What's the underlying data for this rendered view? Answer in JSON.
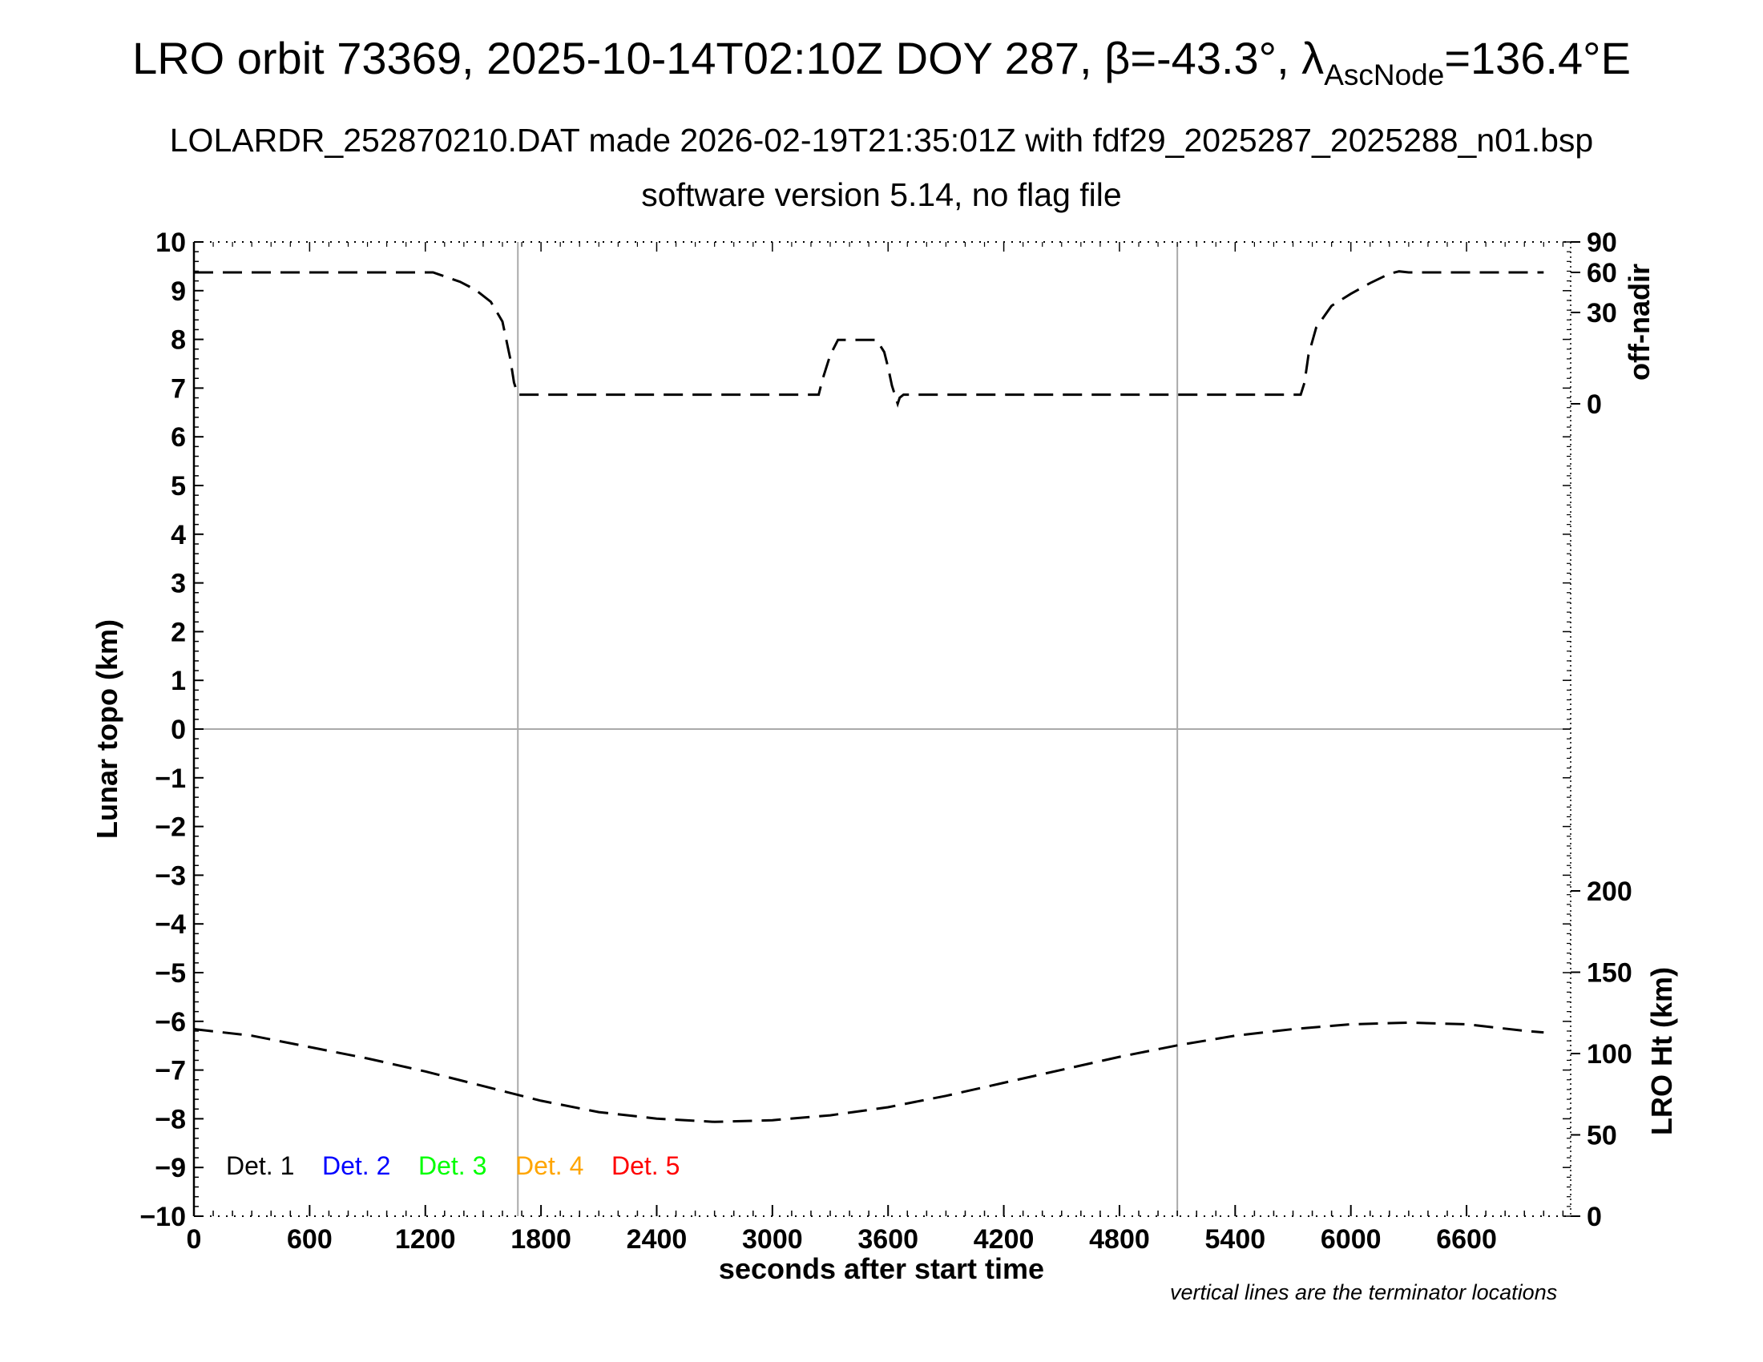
{
  "header": {
    "title_main": "LRO orbit 73369, 2025-10-14T02:10Z DOY 287, β=-43.3°, λ",
    "title_sub": "AscNode",
    "title_tail": "=136.4°E",
    "subtitle": "LOLARDR_252870210.DAT made 2026-02-19T21:35:01Z with fdf29_2025287_2025288_n01.bsp",
    "version": "software version 5.14, no flag file"
  },
  "footnote": "vertical lines are the terminator locations",
  "colors": {
    "axis": "#000000",
    "terminator": "#aaaaaa",
    "det1": "#000000",
    "det2": "#0000ff",
    "det3": "#00ff00",
    "det4": "#ffa500",
    "det5": "#ff0000"
  },
  "chart_data": {
    "type": "line",
    "xlabel": "seconds after start time",
    "ylabel": "Lunar topo (km)",
    "xlim": [
      0,
      7140
    ],
    "ylim": [
      -10,
      10
    ],
    "x_ticks": [
      0,
      600,
      1200,
      1800,
      2400,
      3000,
      3600,
      4200,
      4800,
      5400,
      6000,
      6600
    ],
    "x_tick_labels": [
      "0",
      "600",
      "1200",
      "1800",
      "2400",
      "3000",
      "3600",
      "4200",
      "4800",
      "5400",
      "6000",
      "6600"
    ],
    "y_ticks": [
      -10,
      -9,
      -8,
      -7,
      -6,
      -5,
      -4,
      -3,
      -2,
      -1,
      0,
      1,
      2,
      3,
      4,
      5,
      6,
      7,
      8,
      9,
      10
    ],
    "y_tick_labels": [
      "−10",
      "−9",
      "−8",
      "−7",
      "−6",
      "−5",
      "−4",
      "−3",
      "−2",
      "−1",
      "0",
      "1",
      "2",
      "3",
      "4",
      "5",
      "6",
      "7",
      "8",
      "9",
      "10"
    ],
    "zero_line": true,
    "terminators": [
      1680,
      5100
    ],
    "offnadir_axis": {
      "label": "off-nadir",
      "ticks": [
        0,
        30,
        60,
        90
      ],
      "tick_labels": [
        "0",
        "30",
        "60",
        "90"
      ],
      "series": {
        "name": "off-nadir",
        "x": [
          0,
          1200,
          1240,
          1300,
          1380,
          1460,
          1540,
          1600,
          1640,
          1660,
          1680,
          1700,
          2000,
          3000,
          3240,
          3260,
          3300,
          3340,
          3380,
          3420,
          3460,
          3540,
          3580,
          3600,
          3620,
          3640,
          3650,
          3660,
          3680,
          4000,
          5000,
          5700,
          5740,
          5760,
          5780,
          5820,
          5900,
          6000,
          6100,
          6200,
          6250,
          6300,
          7000
        ],
        "y": [
          60,
          60,
          60,
          57,
          53,
          47,
          38,
          27,
          15,
          7,
          3,
          3,
          3,
          3,
          3,
          8,
          16,
          21,
          21,
          21,
          21,
          21,
          17,
          12,
          6,
          2,
          0,
          2,
          3,
          3,
          3,
          3,
          3,
          7,
          16,
          25,
          35,
          44,
          52,
          59,
          61,
          60,
          60
        ]
      }
    },
    "height_axis": {
      "label": "LRO Ht (km)",
      "ticks": [
        0,
        50,
        100,
        150,
        200
      ],
      "tick_labels": [
        "0",
        "50",
        "100",
        "150",
        "200"
      ],
      "series": {
        "name": "LRO Ht",
        "x": [
          0,
          300,
          600,
          900,
          1200,
          1500,
          1800,
          2100,
          2400,
          2700,
          3000,
          3300,
          3600,
          3900,
          4200,
          4500,
          4800,
          5100,
          5400,
          5700,
          6000,
          6300,
          6600,
          6900,
          7000
        ],
        "y": [
          115,
          111,
          104,
          97,
          89,
          80,
          71,
          64,
          60,
          58,
          59,
          62,
          67,
          74,
          82,
          90,
          98,
          105,
          111,
          115,
          118,
          119,
          118,
          114,
          113
        ]
      }
    },
    "legend": {
      "placement": "bottom-left",
      "entries": [
        "Det. 1",
        "Det. 2",
        "Det. 3",
        "Det. 4",
        "Det. 5"
      ]
    }
  }
}
